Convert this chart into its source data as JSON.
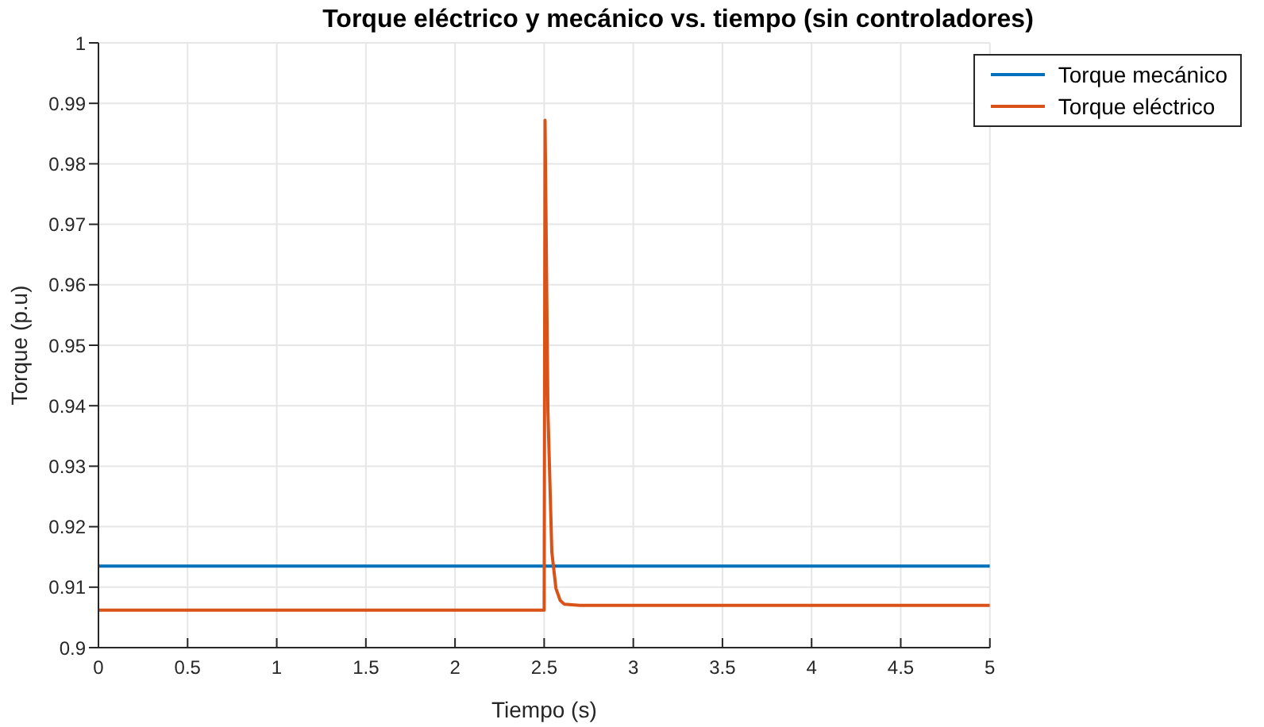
{
  "chart_data": {
    "type": "line",
    "title": "Torque eléctrico y mecánico vs. tiempo (sin controladores)",
    "xlabel": "Tiempo (s)",
    "ylabel": "Torque (p.u)",
    "series": [
      {
        "name": "Torque mecánico",
        "color": "#0072bd",
        "x": [
          0,
          5
        ],
        "values": [
          0.9135,
          0.9135
        ]
      },
      {
        "name": "Torque eléctrico",
        "color": "#d95319",
        "x": [
          0,
          2.5,
          2.505,
          2.521,
          2.543,
          2.566,
          2.59,
          2.612,
          2.7,
          3,
          5
        ],
        "values": [
          0.9062,
          0.9062,
          0.9872,
          0.9392,
          0.9158,
          0.9098,
          0.9078,
          0.9072,
          0.907,
          0.907,
          0.907
        ]
      }
    ],
    "xlim": [
      0,
      5
    ],
    "xticks": [
      0,
      0.5,
      1,
      1.5,
      2,
      2.5,
      3,
      3.5,
      4,
      4.5,
      5
    ],
    "ylim": [
      0.9,
      1
    ],
    "yticks": [
      0.9,
      0.91,
      0.92,
      0.93,
      0.94,
      0.95,
      0.96,
      0.97,
      0.98,
      0.99,
      1
    ],
    "grid": true,
    "legend": "top right",
    "marker": "none",
    "line_style": "solid"
  }
}
